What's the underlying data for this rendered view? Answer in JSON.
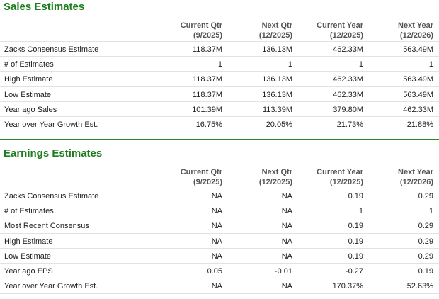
{
  "sections": [
    {
      "title": "Sales Estimates",
      "headers": [
        {
          "name": "Current Qtr",
          "period": "(9/2025)"
        },
        {
          "name": "Next Qtr",
          "period": "(12/2025)"
        },
        {
          "name": "Current Year",
          "period": "(12/2025)"
        },
        {
          "name": "Next Year",
          "period": "(12/2026)"
        }
      ],
      "rows": [
        {
          "label": "Zacks Consensus Estimate",
          "values": [
            "118.37M",
            "136.13M",
            "462.33M",
            "563.49M"
          ]
        },
        {
          "label": "# of Estimates",
          "values": [
            "1",
            "1",
            "1",
            "1"
          ]
        },
        {
          "label": "High Estimate",
          "values": [
            "118.37M",
            "136.13M",
            "462.33M",
            "563.49M"
          ]
        },
        {
          "label": "Low Estimate",
          "values": [
            "118.37M",
            "136.13M",
            "462.33M",
            "563.49M"
          ]
        },
        {
          "label": "Year ago Sales",
          "values": [
            "101.39M",
            "113.39M",
            "379.80M",
            "462.33M"
          ]
        },
        {
          "label": "Year over Year Growth Est.",
          "values": [
            "16.75%",
            "20.05%",
            "21.73%",
            "21.88%"
          ]
        }
      ]
    },
    {
      "title": "Earnings Estimates",
      "headers": [
        {
          "name": "Current Qtr",
          "period": "(9/2025)"
        },
        {
          "name": "Next Qtr",
          "period": "(12/2025)"
        },
        {
          "name": "Current Year",
          "period": "(12/2025)"
        },
        {
          "name": "Next Year",
          "period": "(12/2026)"
        }
      ],
      "rows": [
        {
          "label": "Zacks Consensus Estimate",
          "values": [
            "NA",
            "NA",
            "0.19",
            "0.29"
          ]
        },
        {
          "label": "# of Estimates",
          "values": [
            "NA",
            "NA",
            "1",
            "1"
          ]
        },
        {
          "label": "Most Recent Consensus",
          "values": [
            "NA",
            "NA",
            "0.19",
            "0.29"
          ]
        },
        {
          "label": "High Estimate",
          "values": [
            "NA",
            "NA",
            "0.19",
            "0.29"
          ]
        },
        {
          "label": "Low Estimate",
          "values": [
            "NA",
            "NA",
            "0.19",
            "0.29"
          ]
        },
        {
          "label": "Year ago EPS",
          "values": [
            "0.05",
            "-0.01",
            "-0.27",
            "0.19"
          ]
        },
        {
          "label": "Year over Year Growth Est.",
          "values": [
            "NA",
            "NA",
            "170.37%",
            "52.63%"
          ]
        }
      ]
    }
  ]
}
